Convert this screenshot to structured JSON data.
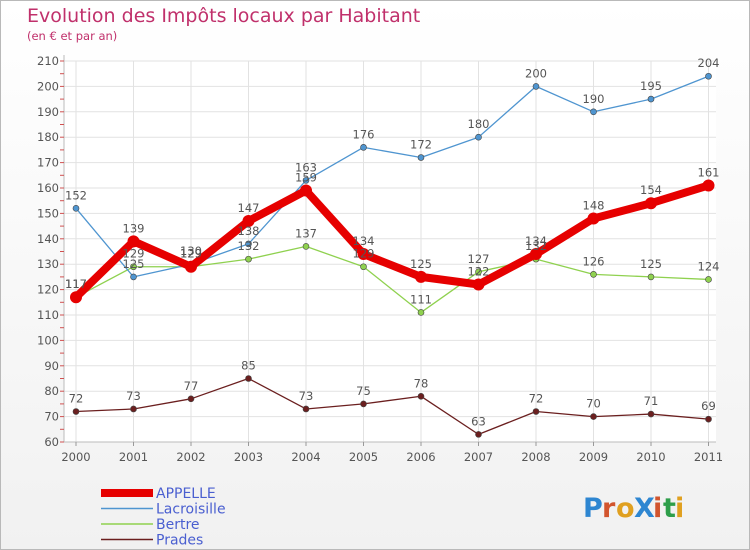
{
  "chart_data": {
    "type": "line",
    "title": "Evolution des Impôts locaux par Habitant",
    "subtitle": "(en € et par an)",
    "xlabel": "",
    "ylabel": "",
    "x": [
      "2000",
      "2001",
      "2002",
      "2003",
      "2004",
      "2005",
      "2006",
      "2007",
      "2008",
      "2009",
      "2010",
      "2011"
    ],
    "ylim": [
      60,
      210
    ],
    "yticks": [
      60,
      70,
      80,
      90,
      100,
      110,
      120,
      130,
      140,
      150,
      160,
      170,
      180,
      190,
      200,
      210
    ],
    "grid": true,
    "legend_position": "bottom-left",
    "series": [
      {
        "name": "APPELLE",
        "color": "#e60000",
        "values": [
          117,
          139,
          129,
          147,
          159,
          134,
          125,
          122,
          134,
          148,
          154,
          161
        ]
      },
      {
        "name": "Lacroisille",
        "color": "#4f95d0",
        "values": [
          152,
          125,
          130,
          138,
          163,
          176,
          172,
          180,
          200,
          190,
          195,
          204
        ]
      },
      {
        "name": "Bertre",
        "color": "#8fd14f",
        "values": [
          117,
          129,
          129,
          132,
          137,
          129,
          111,
          127,
          132,
          126,
          125,
          124
        ]
      },
      {
        "name": "Prades",
        "color": "#6b1f1f",
        "values": [
          72,
          73,
          77,
          85,
          73,
          75,
          78,
          63,
          72,
          70,
          71,
          69
        ]
      }
    ]
  },
  "logo": {
    "text": "ProXiti"
  }
}
